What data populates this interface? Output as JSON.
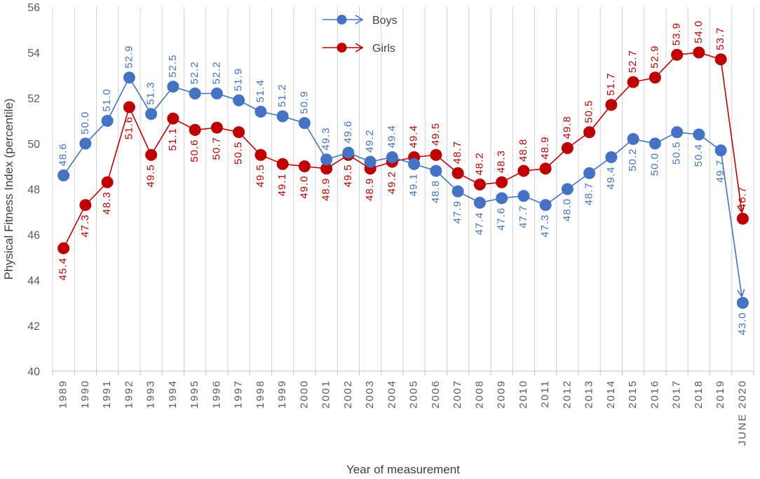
{
  "chart_data": {
    "type": "line",
    "title": "",
    "xlabel": "Year of measurement",
    "ylabel": "Physical Fitness Index (percentile)",
    "ylim": [
      40,
      56
    ],
    "yticks": [
      40,
      42,
      44,
      46,
      48,
      50,
      52,
      54,
      56
    ],
    "grid": "vertical",
    "legend_position": "top-center",
    "categories": [
      "1989",
      "1990",
      "1991",
      "1992",
      "1993",
      "1994",
      "1995",
      "1996",
      "1997",
      "1998",
      "1999",
      "2000",
      "2001",
      "2002",
      "2003",
      "2004",
      "2005",
      "2006",
      "2007",
      "2008",
      "2009",
      "2010",
      "2011",
      "2012",
      "2013",
      "2014",
      "2015",
      "2016",
      "2017",
      "2018",
      "2019",
      "JUNE 2020"
    ],
    "series": [
      {
        "name": "Boys",
        "color": "#4472C4",
        "values": [
          48.6,
          50.0,
          51.0,
          52.9,
          51.3,
          52.5,
          52.2,
          52.2,
          51.9,
          51.4,
          51.2,
          50.9,
          49.3,
          49.6,
          49.2,
          49.4,
          49.1,
          48.8,
          47.9,
          47.4,
          47.6,
          47.7,
          47.3,
          48.0,
          48.7,
          49.4,
          50.2,
          50.0,
          50.5,
          50.4,
          49.7,
          43.0
        ],
        "labels": [
          "48.6",
          "50.0",
          "51.0",
          "52.9",
          "51.3",
          "52.5",
          "52.2",
          "52.2",
          "51.9",
          "51.4",
          "51.2",
          "50.9",
          "49.3",
          "49.6",
          "49.2",
          "49.4",
          "49.1",
          "48.8",
          "47.9",
          "47.4",
          "47.6",
          "47.7",
          "47.3",
          "48.0",
          "48.7",
          "49.4",
          "50.2",
          "50.0",
          "50.5",
          "50.4",
          "49.7",
          "43.0"
        ],
        "label_side": [
          "above",
          "above",
          "above",
          "above",
          "above",
          "above",
          "above",
          "above",
          "above",
          "above",
          "above",
          "above",
          "above",
          "above",
          "above",
          "above",
          "below",
          "below",
          "below",
          "below",
          "below",
          "below",
          "below",
          "below",
          "below",
          "below",
          "below",
          "below",
          "below",
          "below",
          "below",
          "below"
        ]
      },
      {
        "name": "Girls",
        "color": "#C00000",
        "values": [
          45.4,
          47.3,
          48.3,
          51.6,
          49.5,
          51.1,
          50.6,
          50.7,
          50.5,
          49.5,
          49.1,
          49.0,
          48.9,
          49.5,
          48.9,
          49.2,
          49.4,
          49.5,
          48.7,
          48.2,
          48.3,
          48.8,
          48.9,
          49.8,
          50.5,
          51.7,
          52.7,
          52.9,
          53.9,
          54.0,
          53.7,
          46.7
        ],
        "labels": [
          "45.4",
          "47.3",
          "48.3",
          "51.6",
          "49.5",
          "51.1",
          "50.6",
          "50.7",
          "50.5",
          "49.5",
          "49.1",
          "49.0",
          "48.9",
          "49.5",
          "48.9",
          "49.2",
          "49.4",
          "49.5",
          "48.7",
          "48.2",
          "48.3",
          "48.8",
          "48.9",
          "49.8",
          "50.5",
          "51.7",
          "52.7",
          "52.9",
          "53.9",
          "54.0",
          "53.7",
          "46.7"
        ],
        "label_side": [
          "below",
          "below",
          "below",
          "below",
          "below",
          "below",
          "below",
          "below",
          "below",
          "below",
          "below",
          "below",
          "below",
          "below",
          "below",
          "below",
          "above",
          "above",
          "above",
          "above",
          "above",
          "above",
          "above",
          "above",
          "above",
          "above",
          "above",
          "above",
          "above",
          "above",
          "above",
          "above"
        ]
      }
    ]
  }
}
